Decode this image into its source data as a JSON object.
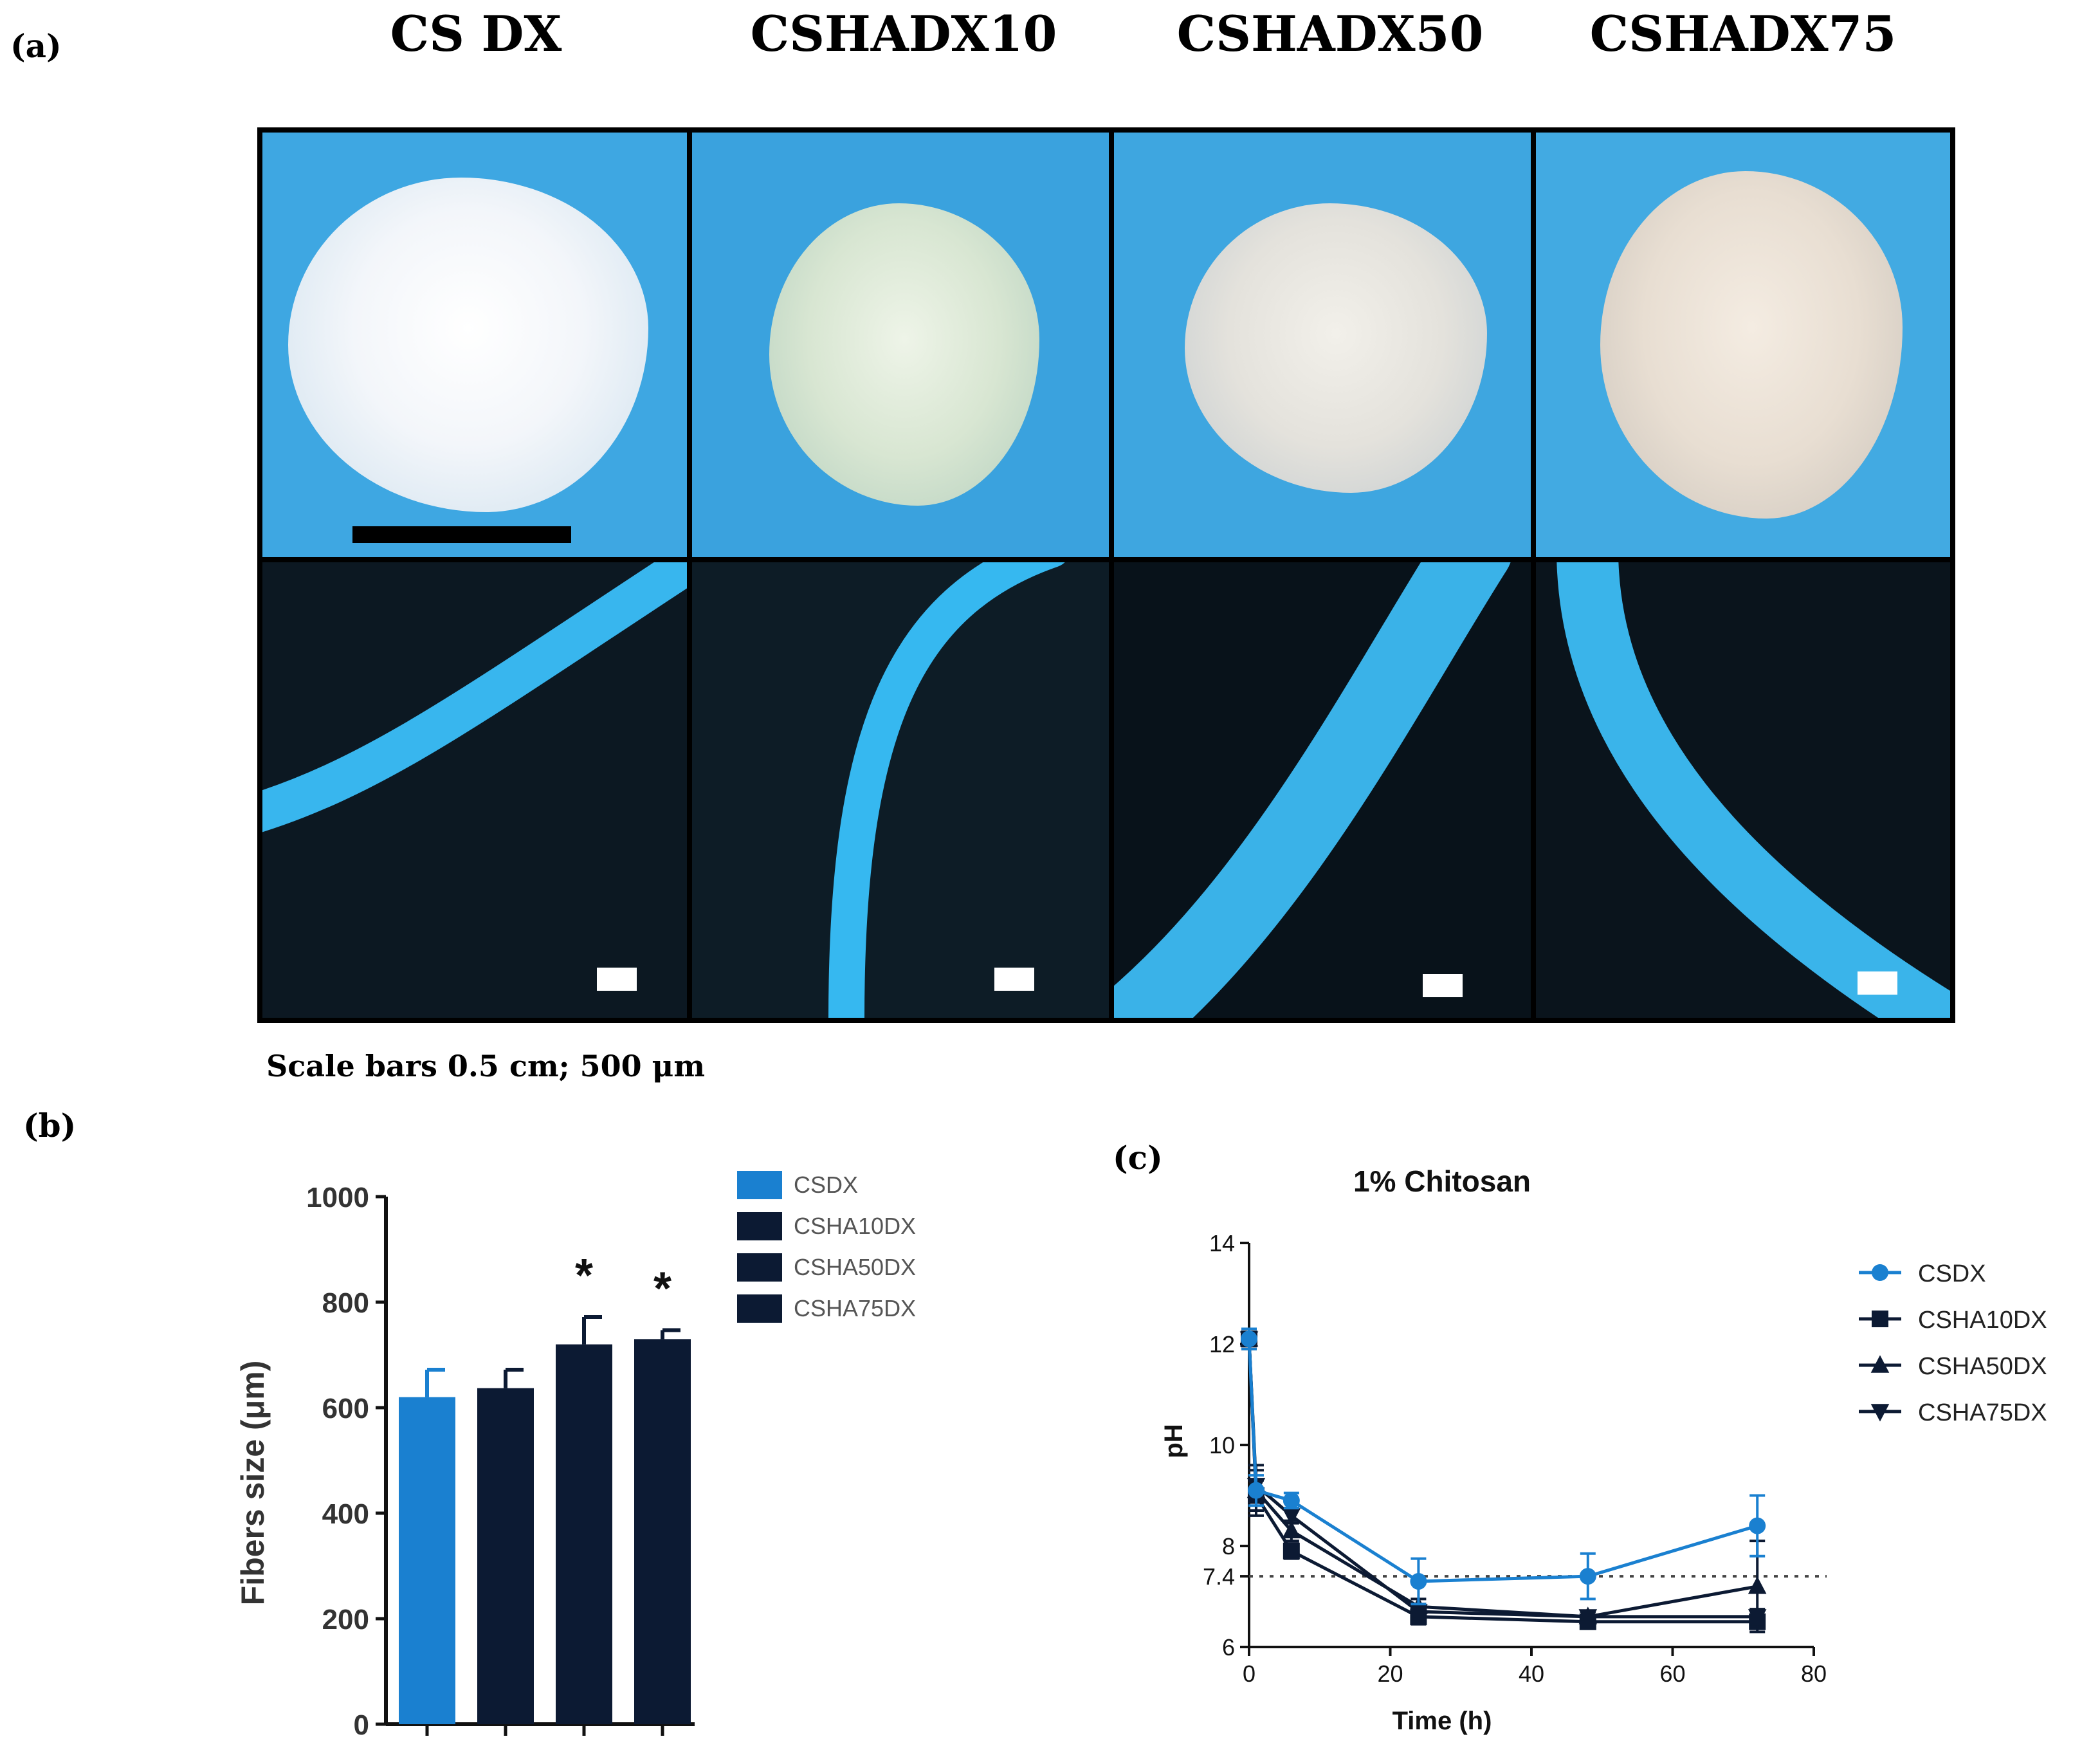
{
  "figure": {
    "panel_a_label": "(a)",
    "panel_b_label": "(b)",
    "panel_c_label": "(c)",
    "column_titles": [
      "CS DX",
      "CSHADX10",
      "CSHADX50",
      "CSHADX75"
    ],
    "scale_note": "Scale bars 0.5 cm; 500 μm"
  },
  "colors": {
    "csdx": "#1a80d0",
    "dark": "#0c1a33",
    "photo_bg": "#3aa6e0",
    "dark_bg": "#0b1620",
    "fiber": "#35b8ee"
  },
  "chart_data": [
    {
      "type": "bar",
      "id": "b",
      "title": "",
      "categories": [
        "CSDX",
        "CSHA10DX",
        "CSHA50DX",
        "CSHA75DX"
      ],
      "values": [
        620,
        637,
        720,
        730
      ],
      "errors": [
        52,
        35,
        52,
        17
      ],
      "significance": [
        "",
        "",
        "*",
        "*"
      ],
      "colors": [
        "#1a80d0",
        "#0c1a33",
        "#0c1a33",
        "#0c1a33"
      ],
      "xlabel": "",
      "ylabel": "Fibers size (μm)",
      "ylim": [
        0,
        1000
      ],
      "yticks": [
        0,
        200,
        400,
        600,
        800,
        1000
      ],
      "legend": [
        "CSDX",
        "CSHA10DX",
        "CSHA50DX",
        "CSHA75DX"
      ],
      "legend_position": "top-right"
    },
    {
      "type": "line",
      "id": "c",
      "title": "1% Chitosan",
      "xlabel": "Time (h)",
      "ylabel": "pH",
      "xlim": [
        0,
        80
      ],
      "ylim": [
        6,
        14
      ],
      "xticks": [
        0,
        20,
        40,
        60,
        80
      ],
      "yticks": [
        6,
        7.4,
        8,
        10,
        12,
        14
      ],
      "reference_line": 7.4,
      "legend_position": "top-right",
      "series": [
        {
          "name": "CSDX",
          "marker": "circle",
          "color": "#1a80d0",
          "x": [
            0,
            1,
            6,
            24,
            48,
            72
          ],
          "y": [
            12.1,
            9.1,
            8.9,
            7.3,
            7.4,
            8.4
          ],
          "err": [
            0.2,
            0.3,
            0.15,
            0.45,
            0.45,
            0.6
          ]
        },
        {
          "name": "CSHA10DX",
          "marker": "square",
          "color": "#0c1a33",
          "x": [
            0,
            1,
            6,
            24,
            48,
            72
          ],
          "y": [
            12.1,
            9.0,
            7.9,
            6.6,
            6.5,
            6.5
          ],
          "err": [
            0.2,
            0.3,
            0.15,
            0.15,
            0.1,
            0.1
          ]
        },
        {
          "name": "CSHA50DX",
          "marker": "triangle-up",
          "color": "#0c1a33",
          "x": [
            0,
            1,
            6,
            24,
            48,
            72
          ],
          "y": [
            12.1,
            9.1,
            8.3,
            6.8,
            6.6,
            7.2
          ],
          "err": [
            0.2,
            0.5,
            0.2,
            0.15,
            0.1,
            0.9
          ]
        },
        {
          "name": "CSHA75DX",
          "marker": "triangle-down",
          "color": "#0c1a33",
          "x": [
            0,
            1,
            6,
            24,
            48,
            72
          ],
          "y": [
            12.1,
            9.2,
            8.6,
            6.7,
            6.6,
            6.6
          ],
          "err": [
            0.2,
            0.3,
            0.15,
            0.15,
            0.1,
            0.15
          ]
        }
      ]
    }
  ]
}
